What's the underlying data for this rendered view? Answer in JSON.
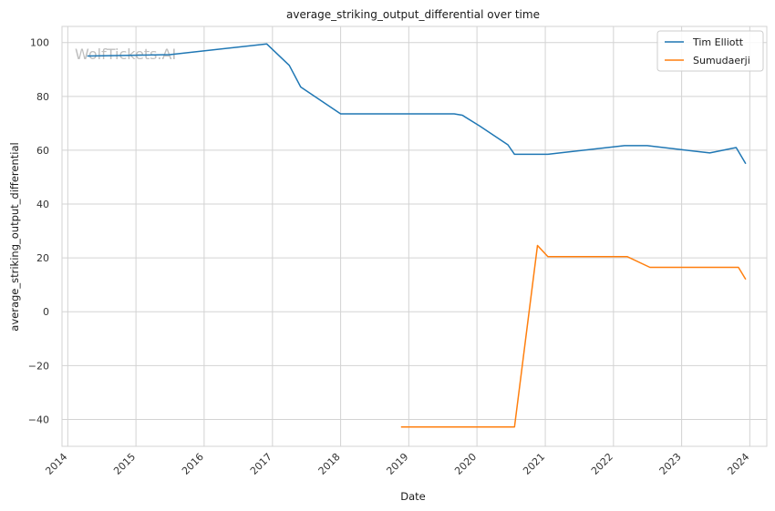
{
  "chart_data": {
    "type": "line",
    "title": "average_striking_output_differential over time",
    "xlabel": "Date",
    "ylabel": "average_striking_output_differential",
    "watermark": "WolfTickets.AI",
    "xlim": [
      "2013-12-01",
      "2024-04-01"
    ],
    "ylim": [
      -50,
      106
    ],
    "x_ticks": [
      "2014",
      "2015",
      "2016",
      "2017",
      "2018",
      "2019",
      "2020",
      "2021",
      "2022",
      "2023",
      "2024"
    ],
    "y_ticks": [
      100,
      80,
      60,
      40,
      20,
      0,
      -20,
      -40
    ],
    "y_tick_labels": [
      "100",
      "80",
      "60",
      "40",
      "20",
      "0",
      "−20",
      "−40"
    ],
    "grid": true,
    "legend_position": "top-right",
    "series": [
      {
        "name": "Tim Elliott",
        "color": "#1f77b4",
        "points": [
          [
            "2014-04-15",
            95
          ],
          [
            "2015-07-01",
            95.5
          ],
          [
            "2016-12-01",
            99.5
          ],
          [
            "2017-04-01",
            91.5
          ],
          [
            "2017-06-01",
            83.5
          ],
          [
            "2018-01-01",
            73.5
          ],
          [
            "2019-09-01",
            73.5
          ],
          [
            "2019-10-15",
            73
          ],
          [
            "2020-01-15",
            69
          ],
          [
            "2020-06-15",
            62
          ],
          [
            "2020-07-20",
            58.5
          ],
          [
            "2021-01-15",
            58.5
          ],
          [
            "2022-03-01",
            61.7
          ],
          [
            "2022-07-01",
            61.7
          ],
          [
            "2023-06-01",
            59
          ],
          [
            "2023-10-20",
            61
          ],
          [
            "2023-12-10",
            55
          ]
        ]
      },
      {
        "name": "Sumudaerji",
        "color": "#ff7f0e",
        "points": [
          [
            "2018-11-20",
            -42.8
          ],
          [
            "2020-07-20",
            -42.8
          ],
          [
            "2020-11-20",
            24.6
          ],
          [
            "2021-01-15",
            20.5
          ],
          [
            "2022-03-15",
            20.5
          ],
          [
            "2022-07-15",
            16.5
          ],
          [
            "2023-11-01",
            16.5
          ],
          [
            "2023-12-10",
            12
          ]
        ]
      }
    ]
  }
}
